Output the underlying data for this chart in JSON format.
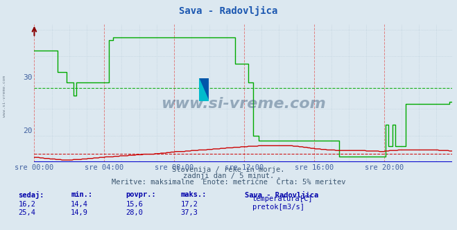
{
  "title": "Sava - Radovljica",
  "bg_color": "#dce8f0",
  "plot_bg_color": "#dce8f0",
  "title_color": "#1a56b0",
  "title_fontsize": 10,
  "tick_color": "#4060a0",
  "grid_major_color": "#e08080",
  "grid_minor_color": "#b8ccd8",
  "x_tick_labels": [
    "sre 00:00",
    "sre 04:00",
    "sre 08:00",
    "sre 12:00",
    "sre 16:00",
    "sre 20:00"
  ],
  "x_tick_positions": [
    0,
    48,
    96,
    144,
    192,
    240
  ],
  "ylim": [
    14.0,
    40.0
  ],
  "ytick_vals": [
    20,
    30
  ],
  "n_points": 288,
  "subtitle1": "Slovenija / reke in morje.",
  "subtitle2": "zadnji dan / 5 minut.",
  "subtitle3": "Meritve: maksimalne  Enote: metrične  Črta: 5% meritev",
  "legend_title": "Sava - Radovljica",
  "legend_entries": [
    "temperatura[C]",
    "pretok[m3/s]"
  ],
  "legend_colors": [
    "#cc0000",
    "#00aa00"
  ],
  "table_headers": [
    "sedaj:",
    "min.:",
    "povpr.:",
    "maks.:"
  ],
  "table_row1": [
    "16,2",
    "14,4",
    "15,6",
    "17,2"
  ],
  "table_row2": [
    "25,4",
    "14,9",
    "28,0",
    "37,3"
  ],
  "watermark": "www.si-vreme.com",
  "temp_avg": 15.6,
  "flow_avg": 28.0,
  "temp_data": [
    14.9,
    14.9,
    14.9,
    14.9,
    14.8,
    14.8,
    14.8,
    14.7,
    14.7,
    14.7,
    14.7,
    14.6,
    14.6,
    14.6,
    14.6,
    14.5,
    14.5,
    14.5,
    14.5,
    14.4,
    14.4,
    14.4,
    14.4,
    14.4,
    14.4,
    14.4,
    14.4,
    14.5,
    14.5,
    14.5,
    14.5,
    14.5,
    14.5,
    14.6,
    14.6,
    14.6,
    14.6,
    14.7,
    14.7,
    14.7,
    14.7,
    14.8,
    14.8,
    14.8,
    14.8,
    14.9,
    14.9,
    14.9,
    14.9,
    15.0,
    15.0,
    15.0,
    15.0,
    15.0,
    15.0,
    15.1,
    15.1,
    15.1,
    15.1,
    15.2,
    15.2,
    15.2,
    15.2,
    15.2,
    15.2,
    15.3,
    15.3,
    15.3,
    15.3,
    15.3,
    15.4,
    15.4,
    15.4,
    15.4,
    15.4,
    15.5,
    15.5,
    15.5,
    15.5,
    15.5,
    15.5,
    15.5,
    15.5,
    15.6,
    15.6,
    15.6,
    15.6,
    15.7,
    15.7,
    15.7,
    15.7,
    15.8,
    15.8,
    15.8,
    15.9,
    15.9,
    15.9,
    16.0,
    16.0,
    16.0,
    16.0,
    16.0,
    16.0,
    16.0,
    16.1,
    16.1,
    16.1,
    16.1,
    16.2,
    16.2,
    16.2,
    16.2,
    16.2,
    16.3,
    16.3,
    16.3,
    16.3,
    16.3,
    16.3,
    16.4,
    16.4,
    16.4,
    16.4,
    16.5,
    16.5,
    16.5,
    16.5,
    16.5,
    16.6,
    16.6,
    16.6,
    16.6,
    16.7,
    16.7,
    16.7,
    16.7,
    16.7,
    16.8,
    16.8,
    16.8,
    16.8,
    16.8,
    16.9,
    16.9,
    16.9,
    16.9,
    16.9,
    17.0,
    17.0,
    17.0,
    17.0,
    17.0,
    17.0,
    17.0,
    17.1,
    17.1,
    17.1,
    17.1,
    17.1,
    17.1,
    17.1,
    17.1,
    17.1,
    17.1,
    17.1,
    17.1,
    17.1,
    17.1,
    17.1,
    17.1,
    17.1,
    17.1,
    17.1,
    17.1,
    17.1,
    17.1,
    17.1,
    17.1,
    17.0,
    17.0,
    17.0,
    17.0,
    16.9,
    16.9,
    16.9,
    16.8,
    16.8,
    16.8,
    16.7,
    16.7,
    16.6,
    16.6,
    16.6,
    16.5,
    16.5,
    16.5,
    16.5,
    16.4,
    16.4,
    16.4,
    16.4,
    16.3,
    16.3,
    16.3,
    16.3,
    16.3,
    16.3,
    16.2,
    16.2,
    16.2,
    16.2,
    16.2,
    16.2,
    16.2,
    16.2,
    16.2,
    16.2,
    16.2,
    16.2,
    16.2,
    16.2,
    16.2,
    16.2,
    16.2,
    16.2,
    16.2,
    16.2,
    16.2,
    16.1,
    16.1,
    16.1,
    16.1,
    16.1,
    16.1,
    16.1,
    16.1,
    16.1,
    16.0,
    16.0,
    16.0,
    16.0,
    16.1,
    16.1,
    16.1,
    16.2,
    16.2,
    16.2,
    16.2,
    16.2,
    16.2,
    16.3,
    16.3,
    16.3,
    16.3,
    16.3,
    16.3,
    16.3,
    16.3,
    16.3,
    16.3,
    16.3,
    16.3,
    16.3,
    16.3,
    16.3,
    16.3,
    16.3,
    16.3,
    16.3,
    16.3,
    16.3,
    16.3,
    16.3,
    16.3,
    16.3,
    16.3,
    16.3,
    16.3,
    16.2,
    16.2,
    16.2,
    16.2,
    16.2,
    16.2,
    16.2,
    16.1,
    16.1,
    16.1,
    16.0
  ],
  "flow_data": [
    35.0,
    35.0,
    35.0,
    35.0,
    35.0,
    35.0,
    35.0,
    35.0,
    35.0,
    35.0,
    35.0,
    35.0,
    35.0,
    35.0,
    35.0,
    35.0,
    31.0,
    31.0,
    31.0,
    31.0,
    31.0,
    31.0,
    29.0,
    29.0,
    29.0,
    29.0,
    29.0,
    26.5,
    26.5,
    29.0,
    29.0,
    29.0,
    29.0,
    29.0,
    29.0,
    29.0,
    29.0,
    29.0,
    29.0,
    29.0,
    29.0,
    29.0,
    29.0,
    29.0,
    29.0,
    29.0,
    29.0,
    29.0,
    29.0,
    29.0,
    29.0,
    37.0,
    37.0,
    37.0,
    37.5,
    37.5,
    37.5,
    37.5,
    37.5,
    37.5,
    37.5,
    37.5,
    37.5,
    37.5,
    37.5,
    37.5,
    37.5,
    37.5,
    37.5,
    37.5,
    37.5,
    37.5,
    37.5,
    37.5,
    37.5,
    37.5,
    37.5,
    37.5,
    37.5,
    37.5,
    37.5,
    37.5,
    37.5,
    37.5,
    37.5,
    37.5,
    37.5,
    37.5,
    37.5,
    37.5,
    37.5,
    37.5,
    37.5,
    37.5,
    37.5,
    37.5,
    37.5,
    37.5,
    37.5,
    37.5,
    37.5,
    37.5,
    37.5,
    37.5,
    37.5,
    37.5,
    37.5,
    37.5,
    37.5,
    37.5,
    37.5,
    37.5,
    37.5,
    37.5,
    37.5,
    37.5,
    37.5,
    37.5,
    37.5,
    37.5,
    37.5,
    37.5,
    37.5,
    37.5,
    37.5,
    37.5,
    37.5,
    37.5,
    37.5,
    37.5,
    37.5,
    37.5,
    37.5,
    37.5,
    37.5,
    37.5,
    37.5,
    37.5,
    32.5,
    32.5,
    32.5,
    32.5,
    32.5,
    32.5,
    32.5,
    32.5,
    32.5,
    29.0,
    29.0,
    29.0,
    19.0,
    19.0,
    19.0,
    19.0,
    18.0,
    18.0,
    18.0,
    18.0,
    18.0,
    18.0,
    18.0,
    18.0,
    18.0,
    18.0,
    18.0,
    18.0,
    18.0,
    18.0,
    18.0,
    18.0,
    18.0,
    18.0,
    18.0,
    18.0,
    18.0,
    18.0,
    18.0,
    18.0,
    18.0,
    18.0,
    18.0,
    18.0,
    18.0,
    18.0,
    18.0,
    18.0,
    18.0,
    18.0,
    18.0,
    18.0,
    18.0,
    18.0,
    18.0,
    18.0,
    18.0,
    18.0,
    18.0,
    18.0,
    18.0,
    18.0,
    18.0,
    18.0,
    18.0,
    18.0,
    18.0,
    18.0,
    18.0,
    18.0,
    18.0,
    15.0,
    15.0,
    15.0,
    15.0,
    15.0,
    15.0,
    15.0,
    15.0,
    15.0,
    15.0,
    15.0,
    15.0,
    15.0,
    15.0,
    15.0,
    15.0,
    15.0,
    15.0,
    15.0,
    15.0,
    15.0,
    15.0,
    15.0,
    15.0,
    15.0,
    15.0,
    15.0,
    15.0,
    15.0,
    15.0,
    15.0,
    15.0,
    21.0,
    21.0,
    17.0,
    17.0,
    17.0,
    21.0,
    21.0,
    17.0,
    17.0,
    17.0,
    17.0,
    17.0,
    17.0,
    17.0,
    25.0,
    25.0,
    25.0,
    25.0,
    25.0,
    25.0,
    25.0,
    25.0,
    25.0,
    25.0,
    25.0,
    25.0,
    25.0,
    25.0,
    25.0,
    25.0,
    25.0,
    25.0,
    25.0,
    25.0,
    25.0,
    25.0,
    25.0,
    25.0,
    25.0,
    25.0,
    25.0,
    25.0,
    25.0,
    25.0,
    25.4,
    25.4,
    25.4,
    25.4
  ]
}
